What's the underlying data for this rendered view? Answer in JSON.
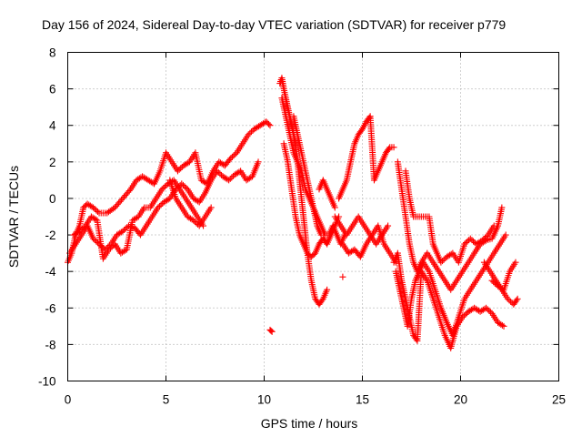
{
  "chart_data": {
    "type": "scatter",
    "title": "Day 156 of 2024, Sidereal Day-to-day VTEC variation (SDTVAR) for receiver p779",
    "xlabel": "GPS time / hours",
    "ylabel": "SDTVAR / TECUs",
    "xlim": [
      0,
      25
    ],
    "ylim": [
      -10,
      8
    ],
    "xticks": [
      "0",
      "5",
      "10",
      "15",
      "20",
      "25"
    ],
    "yticks": [
      "-10",
      "-8",
      "-6",
      "-4",
      "-2",
      "0",
      "2",
      "4",
      "6",
      "8"
    ],
    "grid": true,
    "marker": "+",
    "color": "#ff0000",
    "series": [
      {
        "x": [
          0.0,
          0.2,
          0.4,
          0.6,
          0.8,
          1.0,
          1.3,
          1.6,
          2.0,
          2.4,
          2.8,
          3.2,
          3.5,
          3.8,
          4.1,
          4.4,
          4.7,
          5.0,
          5.3,
          5.6,
          5.9,
          6.2,
          6.5,
          6.8,
          7.1,
          7.4,
          7.7,
          8.0,
          8.3,
          8.6,
          8.9,
          9.2,
          9.5,
          9.8,
          10.1,
          10.3
        ],
        "y": [
          -3.5,
          -3.0,
          -2.0,
          -1.5,
          -0.5,
          -0.3,
          -0.5,
          -0.8,
          -0.8,
          -0.5,
          0.0,
          0.5,
          1.0,
          1.2,
          1.0,
          0.8,
          1.5,
          2.5,
          2.0,
          1.5,
          1.8,
          2.0,
          2.5,
          1.0,
          0.8,
          1.5,
          2.0,
          1.8,
          2.2,
          2.5,
          3.0,
          3.5,
          3.8,
          4.0,
          4.2,
          4.0
        ]
      },
      {
        "x": [
          0.1,
          0.4,
          0.7,
          1.0,
          1.3,
          1.6,
          1.9,
          2.2,
          2.5,
          2.8,
          3.1,
          3.4,
          3.7,
          4.0,
          4.3,
          4.6,
          4.9,
          5.2,
          5.5,
          5.8,
          6.1,
          6.4,
          6.7,
          7.0,
          7.3,
          7.6,
          7.9,
          8.2,
          8.5,
          8.8,
          9.1,
          9.4,
          9.7
        ],
        "y": [
          -3.0,
          -2.5,
          -2.0,
          -1.5,
          -2.2,
          -2.5,
          -2.8,
          -2.5,
          -2.0,
          -1.8,
          -1.5,
          -1.6,
          -2.0,
          -1.5,
          -1.0,
          -0.5,
          -0.2,
          0.0,
          0.5,
          0.8,
          0.5,
          0.0,
          -0.2,
          0.3,
          1.0,
          1.5,
          1.2,
          1.0,
          1.3,
          1.5,
          1.0,
          1.2,
          2.0
        ]
      },
      {
        "x": [
          0.3,
          0.6,
          0.9,
          1.2,
          1.5,
          1.8,
          2.1,
          2.4,
          2.7,
          3.0,
          3.3,
          3.6,
          3.9,
          4.2,
          4.5,
          4.8,
          5.1,
          5.4,
          5.7,
          6.0,
          6.3,
          6.6,
          6.9
        ],
        "y": [
          -2.0,
          -1.8,
          -1.5,
          -1.0,
          -1.2,
          -3.3,
          -2.8,
          -2.5,
          -3.0,
          -2.8,
          -1.2,
          -1.0,
          -0.5,
          -0.5,
          0.0,
          0.5,
          0.8,
          1.0,
          0.5,
          0.0,
          -0.5,
          -1.0,
          -1.5
        ]
      },
      {
        "x": [
          5.2,
          5.5,
          5.8,
          6.1,
          6.4,
          6.7,
          7.0,
          7.3
        ],
        "y": [
          1.0,
          0.0,
          -0.5,
          -1.0,
          -1.2,
          -1.5,
          -1.0,
          -0.5
        ]
      },
      {
        "x": [
          10.3,
          10.4
        ],
        "y": [
          -7.2,
          -7.3
        ]
      },
      {
        "x": [
          10.8,
          10.9,
          11.0,
          11.1,
          11.2,
          11.3,
          11.4,
          11.5,
          11.6,
          11.7,
          11.8,
          11.9,
          12.0,
          12.1,
          12.2,
          12.4,
          12.6,
          12.8,
          13.0,
          13.2
        ],
        "y": [
          6.3,
          6.6,
          6.0,
          5.5,
          5.0,
          4.5,
          4.0,
          3.5,
          3.0,
          2.0,
          1.0,
          0.0,
          -1.0,
          -2.0,
          -3.0,
          -4.5,
          -5.5,
          -5.8,
          -5.5,
          -5.0
        ]
      },
      {
        "x": [
          10.9,
          11.1,
          11.3,
          11.5,
          11.7,
          11.9,
          12.1,
          12.3,
          12.5,
          12.7,
          12.9,
          13.1,
          13.3,
          13.5,
          13.7,
          13.9,
          14.1
        ],
        "y": [
          5.5,
          4.5,
          3.5,
          2.5,
          2.0,
          1.5,
          0.5,
          0.0,
          -0.5,
          -1.0,
          -1.5,
          -2.0,
          -2.0,
          -1.5,
          -2.0,
          -2.5,
          -2.0
        ]
      },
      {
        "x": [
          11.0,
          11.2,
          11.4,
          11.6,
          11.8,
          12.0,
          12.2,
          12.4,
          12.6,
          12.8,
          13.0,
          13.2,
          13.4,
          13.6,
          13.8
        ],
        "y": [
          3.0,
          2.0,
          0.5,
          -1.0,
          -2.0,
          -2.5,
          -3.0,
          -3.2,
          -3.0,
          -2.5,
          -2.2,
          -2.5,
          -2.0,
          -1.5,
          -1.0
        ]
      },
      {
        "x": [
          11.5,
          11.7,
          11.9,
          12.1,
          12.3,
          12.5,
          12.7,
          12.9
        ],
        "y": [
          4.5,
          3.5,
          2.5,
          1.5,
          0.5,
          -0.5,
          -1.5,
          -2.0
        ]
      },
      {
        "x": [
          12.8,
          13.0,
          13.2,
          13.4,
          13.6
        ],
        "y": [
          0.5,
          1.0,
          0.5,
          0.0,
          -0.5
        ]
      },
      {
        "x": [
          13.8,
          14.0,
          14.2,
          14.4,
          14.6,
          14.8,
          15.0,
          15.2,
          15.4,
          15.6,
          15.8,
          16.0,
          16.2,
          16.4,
          16.6
        ],
        "y": [
          0.0,
          0.5,
          1.0,
          2.0,
          3.0,
          3.5,
          3.8,
          4.2,
          4.5,
          1.0,
          1.5,
          2.0,
          2.5,
          2.8,
          2.8
        ]
      },
      {
        "x": [
          14.0,
          14.3,
          14.6,
          14.9,
          15.2,
          15.5,
          15.8,
          16.1,
          16.4,
          16.7
        ],
        "y": [
          -2.5,
          -3.0,
          -2.8,
          -3.2,
          -2.5,
          -2.0,
          -1.5,
          -2.5,
          -3.0,
          -3.5
        ]
      },
      {
        "x": [
          13.6,
          13.9,
          14.2,
          14.5,
          14.8,
          15.1,
          15.4,
          15.7,
          16.0,
          16.3
        ],
        "y": [
          -1.0,
          -1.5,
          -2.0,
          -1.5,
          -1.0,
          -1.5,
          -2.0,
          -2.5,
          -2.0,
          -1.5
        ]
      },
      {
        "x": [
          14.0
        ],
        "y": [
          -4.3
        ]
      },
      {
        "x": [
          16.6,
          16.8,
          17.0,
          17.2,
          17.4,
          17.6,
          17.8,
          18.0,
          18.3,
          18.6,
          18.9,
          19.2,
          19.5,
          19.8,
          20.1,
          20.4,
          20.7,
          21.0,
          21.3,
          21.6,
          21.9,
          22.2
        ],
        "y": [
          -3.5,
          -3.0,
          -4.5,
          -5.5,
          -6.5,
          -7.5,
          -7.8,
          -4.0,
          -4.5,
          -5.5,
          -6.5,
          -7.5,
          -8.2,
          -7.0,
          -6.5,
          -6.2,
          -6.0,
          -6.2,
          -6.0,
          -6.3,
          -6.8,
          -7.0
        ]
      },
      {
        "x": [
          16.7,
          16.9,
          17.1,
          17.3,
          17.5,
          17.7,
          17.9,
          18.1,
          18.4,
          18.7,
          19.0,
          19.3,
          19.6,
          19.9,
          20.2,
          20.5,
          20.8,
          21.1,
          21.4,
          21.7,
          22.0,
          22.3
        ],
        "y": [
          -4.0,
          -5.0,
          -6.0,
          -7.0,
          -5.5,
          -4.5,
          -4.0,
          -3.5,
          -4.0,
          -5.0,
          -6.0,
          -6.8,
          -7.5,
          -6.5,
          -5.5,
          -5.0,
          -4.5,
          -4.0,
          -3.5,
          -3.0,
          -2.5,
          -2.0
        ]
      },
      {
        "x": [
          16.8,
          17.0,
          17.2,
          17.4,
          17.6,
          17.8,
          18.0,
          18.3,
          18.6,
          18.9,
          19.2,
          19.5,
          19.8,
          20.1,
          20.4,
          20.7,
          21.0,
          21.3,
          21.6,
          21.9,
          22.1
        ],
        "y": [
          2.0,
          0.5,
          -1.0,
          -2.5,
          -3.5,
          -4.0,
          -3.5,
          -3.0,
          -3.5,
          -4.0,
          -4.5,
          -5.0,
          -4.5,
          -4.0,
          -3.5,
          -3.0,
          -2.5,
          -2.3,
          -2.2,
          -1.5,
          -0.5
        ]
      },
      {
        "x": [
          17.2,
          17.4,
          17.6,
          17.8,
          18.0,
          18.2,
          18.4,
          18.6,
          18.8,
          19.0,
          19.3,
          19.6,
          19.9,
          20.2,
          20.5,
          20.8,
          21.1,
          21.4,
          21.7
        ],
        "y": [
          1.5,
          0.0,
          -1.0,
          -1.0,
          -1.0,
          -1.0,
          -1.0,
          -2.5,
          -3.0,
          -3.5,
          -3.2,
          -3.0,
          -3.5,
          -2.5,
          -2.2,
          -2.5,
          -2.3,
          -2.0,
          -1.5
        ]
      },
      {
        "x": [
          21.2,
          21.5,
          21.8,
          22.1,
          22.4,
          22.7,
          22.9
        ],
        "y": [
          -3.5,
          -4.0,
          -4.5,
          -5.0,
          -5.5,
          -5.8,
          -5.5
        ]
      },
      {
        "x": [
          21.6,
          21.9,
          22.2,
          22.5,
          22.8
        ],
        "y": [
          -4.5,
          -4.8,
          -5.0,
          -4.0,
          -3.5
        ]
      }
    ]
  }
}
